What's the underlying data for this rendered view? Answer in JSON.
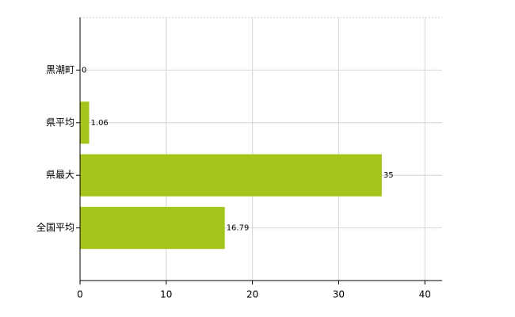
{
  "chart_data": {
    "type": "bar",
    "orientation": "horizontal",
    "categories": [
      "黒潮町",
      "県平均",
      "県最大",
      "全国平均"
    ],
    "values": [
      0,
      1.06,
      35,
      16.79
    ],
    "color": "#a3c51c",
    "xlim": [
      0,
      42
    ],
    "xticks": [
      0,
      10,
      20,
      30,
      40
    ],
    "grid": true
  }
}
